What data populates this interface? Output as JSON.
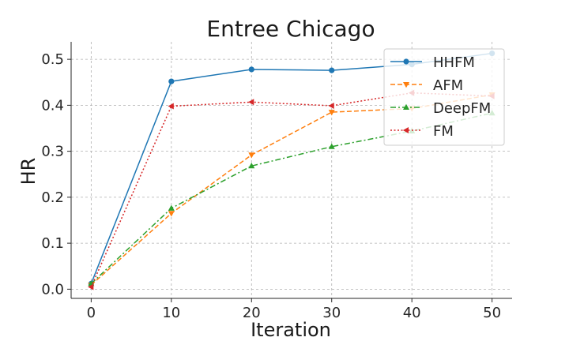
{
  "chart_data": {
    "type": "line",
    "title": "Entree Chicago",
    "xlabel": "Iteration",
    "ylabel": "HR",
    "x": [
      0,
      10,
      20,
      30,
      40,
      50
    ],
    "xlim": [
      -2.5,
      52.5
    ],
    "ylim": [
      -0.02,
      0.538
    ],
    "xticks": [
      0,
      10,
      20,
      30,
      40,
      50
    ],
    "yticks": [
      0.0,
      0.1,
      0.2,
      0.3,
      0.4,
      0.5
    ],
    "grid": true,
    "legend_position": "top-right",
    "series": [
      {
        "name": "HHFM",
        "values": [
          0.012,
          0.452,
          0.478,
          0.476,
          0.489,
          0.513
        ],
        "color": "#1f77b4",
        "marker": "circle",
        "linestyle": "solid"
      },
      {
        "name": "AFM",
        "values": [
          0.009,
          0.165,
          0.292,
          0.385,
          0.393,
          0.423
        ],
        "color": "#ff7f0e",
        "marker": "triangle-down",
        "linestyle": "dashed"
      },
      {
        "name": "DeepFM",
        "values": [
          0.012,
          0.176,
          0.268,
          0.31,
          0.344,
          0.383
        ],
        "color": "#2ca02c",
        "marker": "triangle-up",
        "linestyle": "dashdot"
      },
      {
        "name": "FM",
        "values": [
          0.005,
          0.398,
          0.407,
          0.399,
          0.427,
          0.42
        ],
        "color": "#d62728",
        "marker": "triangle-left",
        "linestyle": "dotted"
      }
    ]
  }
}
